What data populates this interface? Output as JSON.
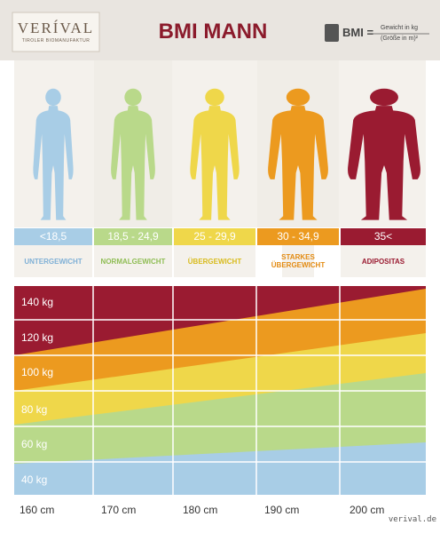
{
  "header": {
    "logo": {
      "name": "VERÍVAL",
      "tagline": "TIROLER BIOMANUFAKTUR"
    },
    "title": "BMI MANN",
    "formula": {
      "lhs": "BMI =",
      "numerator": "Gewicht in kg",
      "denominator": "(Größe in m)²"
    }
  },
  "categories": [
    {
      "range": "<18,5",
      "label": "UNTERGEWICHT"
    },
    {
      "range": "18,5 - 24,9",
      "label": "NORMALGEWICHT"
    },
    {
      "range": "25 - 29,9",
      "label": "ÜBERGEWICHT"
    },
    {
      "range": "30 - 34,9",
      "label": "STARKES ÜBERGEWICHT"
    },
    {
      "range": "35<",
      "label": "ADIPOSITAS"
    }
  ],
  "chart": {
    "weights": [
      "140 kg",
      "120 kg",
      "100 kg",
      "80 kg",
      "60 kg",
      "40 kg"
    ],
    "heights": [
      "160 cm",
      "170 cm",
      "180 cm",
      "190 cm",
      "200 cm"
    ]
  },
  "footer": "verival.de"
}
